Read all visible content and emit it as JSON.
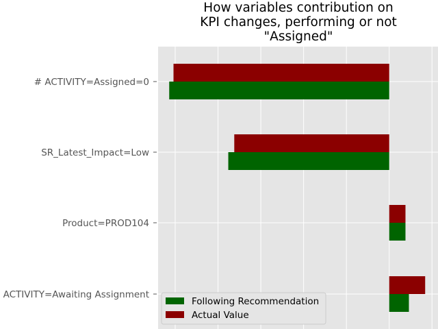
{
  "chart_data": {
    "type": "bar",
    "orientation": "horizontal",
    "title_lines": [
      "How variables contribution on",
      "KPI changes, performing or not",
      "\"Assigned\""
    ],
    "categories": [
      "# ACTIVITY=Assigned=0",
      "SR_Latest_Impact=Low",
      "Product=PROD104",
      "ACTIVITY=Awaiting Assignment"
    ],
    "series": [
      {
        "name": "Following Recommendation",
        "color": "#006400",
        "values": [
          -0.257,
          -0.188,
          0.019,
          0.023
        ]
      },
      {
        "name": "Actual Value",
        "color": "#8b0000",
        "values": [
          -0.252,
          -0.181,
          0.019,
          0.042
        ]
      }
    ],
    "xlim": [
      -0.27,
      0.057
    ],
    "x_gridlines": [
      -0.25,
      -0.2,
      -0.15,
      -0.1,
      -0.05,
      0.0,
      0.05
    ],
    "x_tick_labels_visible": false,
    "grid": true,
    "legend_placement": "lower-left",
    "style": "ggplot"
  }
}
